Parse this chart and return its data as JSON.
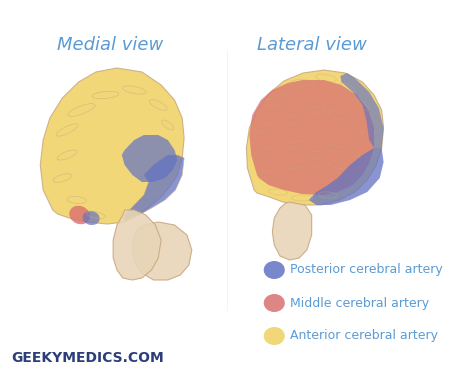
{
  "background_color": "#ffffff",
  "title_medial": "Medial view",
  "title_lateral": "Lateral view",
  "title_fontsize": 13,
  "title_color": "#5b9bd5",
  "legend_items": [
    {
      "label": "Posterior cerebral artery",
      "color": "#6272c3"
    },
    {
      "label": "Middle cerebral artery",
      "color": "#d97070"
    },
    {
      "label": "Anterior cerebral artery",
      "color": "#f0d060"
    }
  ],
  "legend_text_color": "#5b9bd5",
  "legend_fontsize": 9,
  "watermark": "GEEKYMEDICS.COM",
  "watermark_color": "#2c3e7a",
  "watermark_fontsize": 10,
  "posterior_color": "#6272c3",
  "middle_color": "#d97070",
  "anterior_color": "#f0d060",
  "brain_base_color": "#e8d5b7",
  "brain_outline_color": "#c8a882"
}
